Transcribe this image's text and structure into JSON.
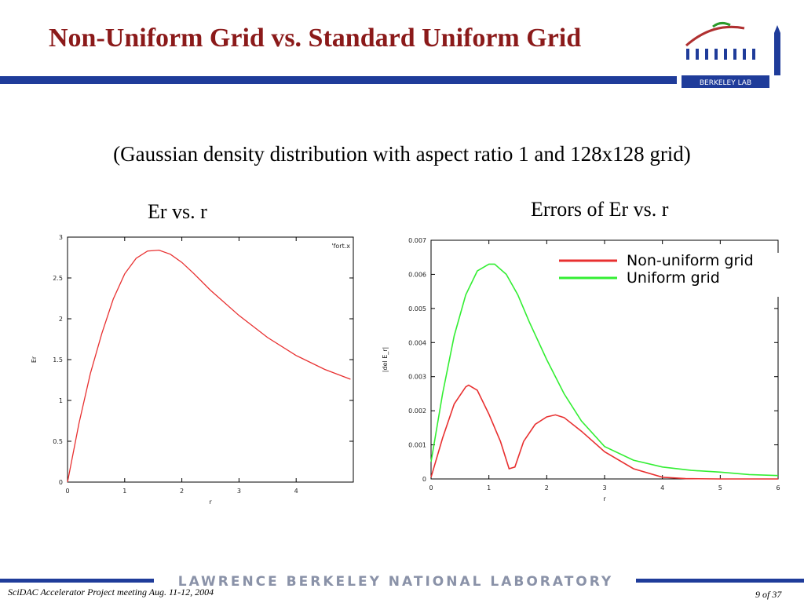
{
  "slide": {
    "title": "Non-Uniform Grid vs. Standard Uniform Grid",
    "subtitle": "(Gaussian density distribution with aspect ratio 1 and 128x128 grid)",
    "left_heading": "Er vs. r",
    "right_heading": "Errors of Er vs. r",
    "logo_text": "BERKELEY LAB",
    "footer_lab": "LAWRENCE BERKELEY NATIONAL LABORATORY",
    "footer_left": "SciDAC Accelerator Project meeting Aug. 11-12, 2004",
    "footer_page": "9 of 37"
  },
  "colors": {
    "title": "#8b1a1a",
    "bar": "#1f3c9a",
    "red": "#e83030",
    "green": "#33ee33"
  },
  "chart_data": [
    {
      "type": "line",
      "xlabel": "r",
      "ylabel": "Er",
      "xlim": [
        0,
        5
      ],
      "ylim": [
        0,
        3
      ],
      "xticks": [
        "0",
        "1",
        "2",
        "3",
        "4"
      ],
      "yticks": [
        "0",
        "0.5",
        "1",
        "1.5",
        "2",
        "2.5",
        "3"
      ],
      "grid": false,
      "legend": "top-right",
      "series": [
        {
          "name": "'fort.x",
          "color": "#e83030",
          "x": [
            0,
            0.2,
            0.4,
            0.6,
            0.8,
            1.0,
            1.2,
            1.4,
            1.6,
            1.8,
            2.0,
            2.2,
            2.5,
            3.0,
            3.5,
            4.0,
            4.5,
            4.95
          ],
          "y": [
            0,
            0.72,
            1.33,
            1.82,
            2.24,
            2.55,
            2.74,
            2.83,
            2.84,
            2.79,
            2.69,
            2.56,
            2.35,
            2.04,
            1.77,
            1.55,
            1.38,
            1.26
          ]
        }
      ]
    },
    {
      "type": "line",
      "xlabel": "r",
      "ylabel": "|del E_r|",
      "xlim": [
        0,
        6
      ],
      "ylim": [
        0,
        0.007
      ],
      "xticks": [
        "0",
        "1",
        "2",
        "3",
        "4",
        "5",
        "6"
      ],
      "yticks": [
        "0",
        "0.001",
        "0.002",
        "0.003",
        "0.004",
        "0.005",
        "0.006",
        "0.007"
      ],
      "grid": false,
      "legend": "top-right",
      "series": [
        {
          "name": "Non-uniform grid",
          "color": "#e83030",
          "x": [
            0,
            0.2,
            0.4,
            0.6,
            0.65,
            0.8,
            1.0,
            1.2,
            1.35,
            1.45,
            1.6,
            1.8,
            2.0,
            2.15,
            2.3,
            2.6,
            3.0,
            3.5,
            4.0,
            4.4,
            5.0,
            6.0
          ],
          "y": [
            5e-05,
            0.0012,
            0.0022,
            0.0027,
            0.00275,
            0.0026,
            0.0019,
            0.0011,
            0.0003,
            0.00035,
            0.0011,
            0.0016,
            0.00182,
            0.00188,
            0.0018,
            0.0014,
            0.0008,
            0.0003,
            5e-05,
            1e-05,
            0.0,
            0.0
          ]
        },
        {
          "name": "Uniform grid",
          "color": "#33ee33",
          "x": [
            0,
            0.2,
            0.4,
            0.6,
            0.8,
            1.0,
            1.1,
            1.3,
            1.5,
            1.7,
            2.0,
            2.3,
            2.6,
            3.0,
            3.5,
            4.0,
            4.5,
            5.0,
            5.5,
            6.0
          ],
          "y": [
            0.0005,
            0.0025,
            0.0042,
            0.0054,
            0.0061,
            0.0063,
            0.0063,
            0.006,
            0.0054,
            0.0046,
            0.0035,
            0.0025,
            0.0017,
            0.00095,
            0.00055,
            0.00035,
            0.00025,
            0.0002,
            0.00013,
            0.0001
          ]
        }
      ]
    }
  ]
}
